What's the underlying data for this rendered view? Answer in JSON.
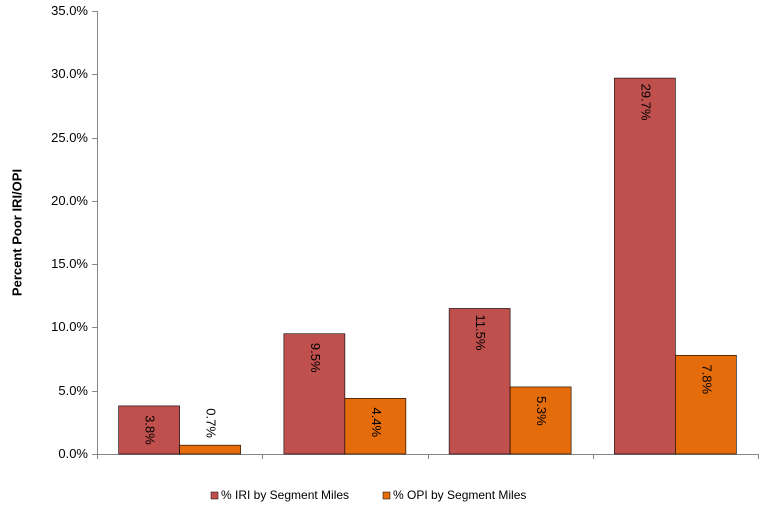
{
  "chart_data": {
    "type": "bar",
    "title": "",
    "xlabel": "",
    "ylabel": "Percent Poor IRI/OPI",
    "ylim": [
      0,
      35
    ],
    "y_tick_step": 5,
    "y_tick_labels": [
      "0.0%",
      "5.0%",
      "10.0%",
      "15.0%",
      "20.0%",
      "25.0%",
      "30.0%",
      "35.0%"
    ],
    "categories": [
      "",
      "",
      "",
      ""
    ],
    "grid": false,
    "legend_position": "bottom",
    "label_orientation": "vertical",
    "series": [
      {
        "name": "% IRI by Segment Miles",
        "color": "#C0504D",
        "values": [
          3.8,
          9.5,
          11.5,
          29.7
        ],
        "labels": [
          "3.8%",
          "9.5%",
          "11.5%",
          "29.7%"
        ]
      },
      {
        "name": "% OPI by Segment Miles",
        "color": "#E46C0A",
        "values": [
          0.7,
          4.4,
          5.3,
          7.8
        ],
        "labels": [
          "0.7%",
          "4.4%",
          "5.3%",
          "7.8%"
        ]
      }
    ]
  }
}
